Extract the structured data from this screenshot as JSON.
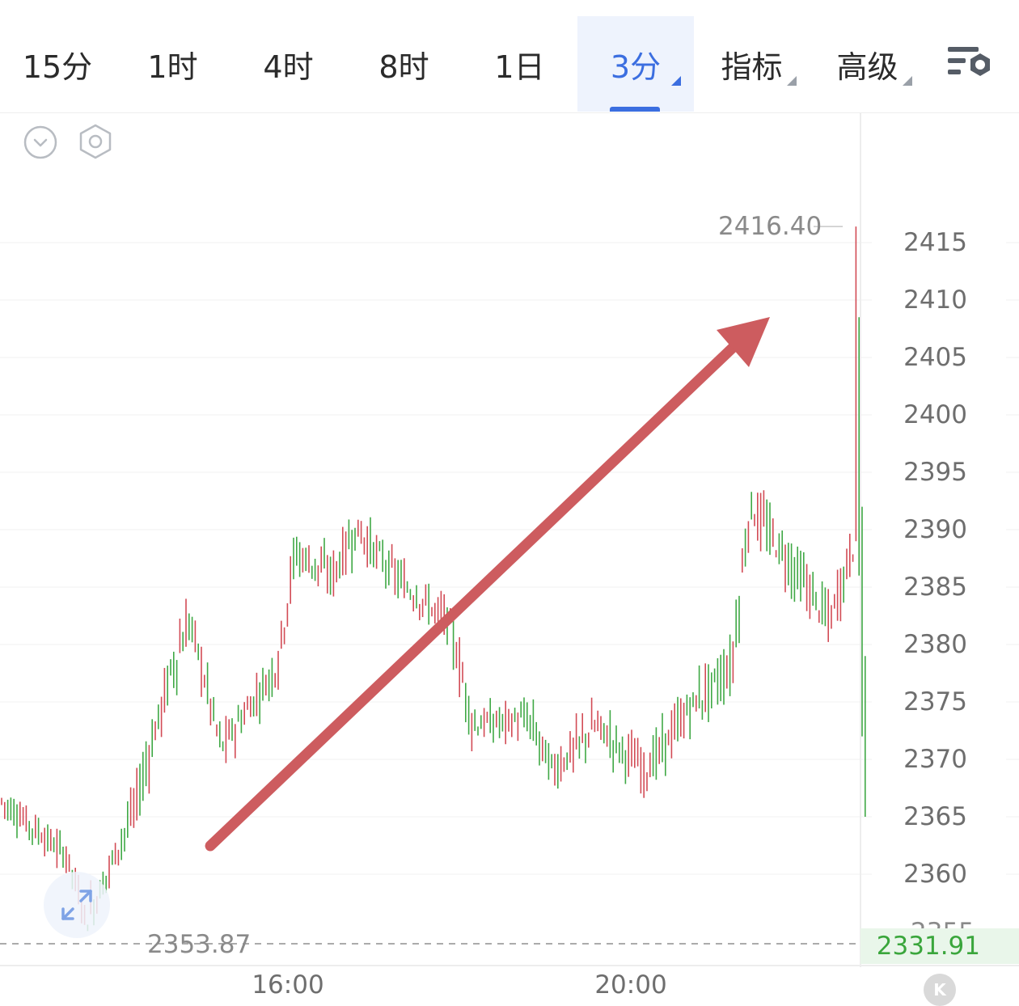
{
  "toolbar": {
    "tabs": [
      {
        "label": "15分",
        "active": false,
        "dropdown": false
      },
      {
        "label": "1时",
        "active": false,
        "dropdown": false
      },
      {
        "label": "4时",
        "active": false,
        "dropdown": false
      },
      {
        "label": "8时",
        "active": false,
        "dropdown": false
      },
      {
        "label": "1日",
        "active": false,
        "dropdown": false
      },
      {
        "label": "3分",
        "active": true,
        "dropdown": true
      },
      {
        "label": "指标",
        "active": false,
        "dropdown": true
      },
      {
        "label": "高级",
        "active": false,
        "dropdown": true
      }
    ],
    "settings_icon": "chart-settings-icon"
  },
  "controls": {
    "collapse_icon": "chevron-down-circle-icon",
    "settings_icon": "hexagon-settings-icon",
    "expand_icon": "expand-arrows-icon",
    "k_icon": "k-badge-icon"
  },
  "colors": {
    "up": "#d24b55",
    "down": "#3fa845",
    "accent": "#3b6ee0",
    "arrow": "#cd5c5f",
    "last_price": "#3aa63c"
  },
  "chart_data": {
    "type": "bar",
    "style": "OHLC 3-minute price bars",
    "ylim": [
      2353.87,
      2416.4
    ],
    "y_ticks": [
      "2415",
      "2410",
      "2405",
      "2400",
      "2395",
      "2390",
      "2385",
      "2380",
      "2375",
      "2370",
      "2365",
      "2360",
      "2355"
    ],
    "x_ticks": [
      "16:00",
      "20:00"
    ],
    "high_label": "2416.40",
    "low_label": "2353.87",
    "last_price": "2331.91",
    "grid": true,
    "annotation": "upward trend arrow",
    "segments": [
      {
        "start": 2366.5,
        "end": 2361.5,
        "n": 22,
        "vol": 1.6
      },
      {
        "start": 2361.5,
        "end": 2356.0,
        "n": 6,
        "vol": 1.5
      },
      {
        "start": 2356.0,
        "end": 2357.0,
        "n": 2,
        "vol": 2.5
      },
      {
        "start": 2357.0,
        "end": 2366.0,
        "n": 14,
        "vol": 2.0
      },
      {
        "start": 2366.0,
        "end": 2378.0,
        "n": 12,
        "vol": 2.6
      },
      {
        "start": 2378.0,
        "end": 2382.0,
        "n": 6,
        "vol": 3.0
      },
      {
        "start": 2382.0,
        "end": 2371.0,
        "n": 10,
        "vol": 2.2
      },
      {
        "start": 2371.0,
        "end": 2378.0,
        "n": 18,
        "vol": 2.0
      },
      {
        "start": 2378.0,
        "end": 2388.0,
        "n": 6,
        "vol": 3.0
      },
      {
        "start": 2388.0,
        "end": 2386.0,
        "n": 12,
        "vol": 2.2
      },
      {
        "start": 2386.0,
        "end": 2390.0,
        "n": 8,
        "vol": 2.4
      },
      {
        "start": 2390.0,
        "end": 2385.0,
        "n": 16,
        "vol": 2.0
      },
      {
        "start": 2385.0,
        "end": 2382.0,
        "n": 14,
        "vol": 2.0
      },
      {
        "start": 2382.0,
        "end": 2373.0,
        "n": 8,
        "vol": 2.4
      },
      {
        "start": 2373.0,
        "end": 2373.5,
        "n": 18,
        "vol": 1.8
      },
      {
        "start": 2373.5,
        "end": 2369.0,
        "n": 8,
        "vol": 2.2
      },
      {
        "start": 2369.0,
        "end": 2373.0,
        "n": 14,
        "vol": 2.2
      },
      {
        "start": 2373.0,
        "end": 2369.0,
        "n": 16,
        "vol": 2.2
      },
      {
        "start": 2369.0,
        "end": 2375.0,
        "n": 16,
        "vol": 2.2
      },
      {
        "start": 2375.0,
        "end": 2378.0,
        "n": 12,
        "vol": 2.4
      },
      {
        "start": 2378.0,
        "end": 2392.0,
        "n": 6,
        "vol": 3.0
      },
      {
        "start": 2392.0,
        "end": 2386.0,
        "n": 16,
        "vol": 2.6
      },
      {
        "start": 2386.0,
        "end": 2382.0,
        "n": 10,
        "vol": 2.4
      },
      {
        "start": 2382.0,
        "end": 2389.0,
        "n": 8,
        "vol": 2.6
      }
    ],
    "final_bars": [
      {
        "open": 2390.0,
        "high": 2416.4,
        "low": 2389.0,
        "close": 2408.0
      },
      {
        "open": 2408.0,
        "high": 2408.5,
        "low": 2386.0,
        "close": 2387.0
      },
      {
        "open": 2387.0,
        "high": 2392.0,
        "low": 2372.0,
        "close": 2378.0
      },
      {
        "open": 2378.0,
        "high": 2379.0,
        "low": 2365.0,
        "close": 2366.0
      }
    ]
  }
}
